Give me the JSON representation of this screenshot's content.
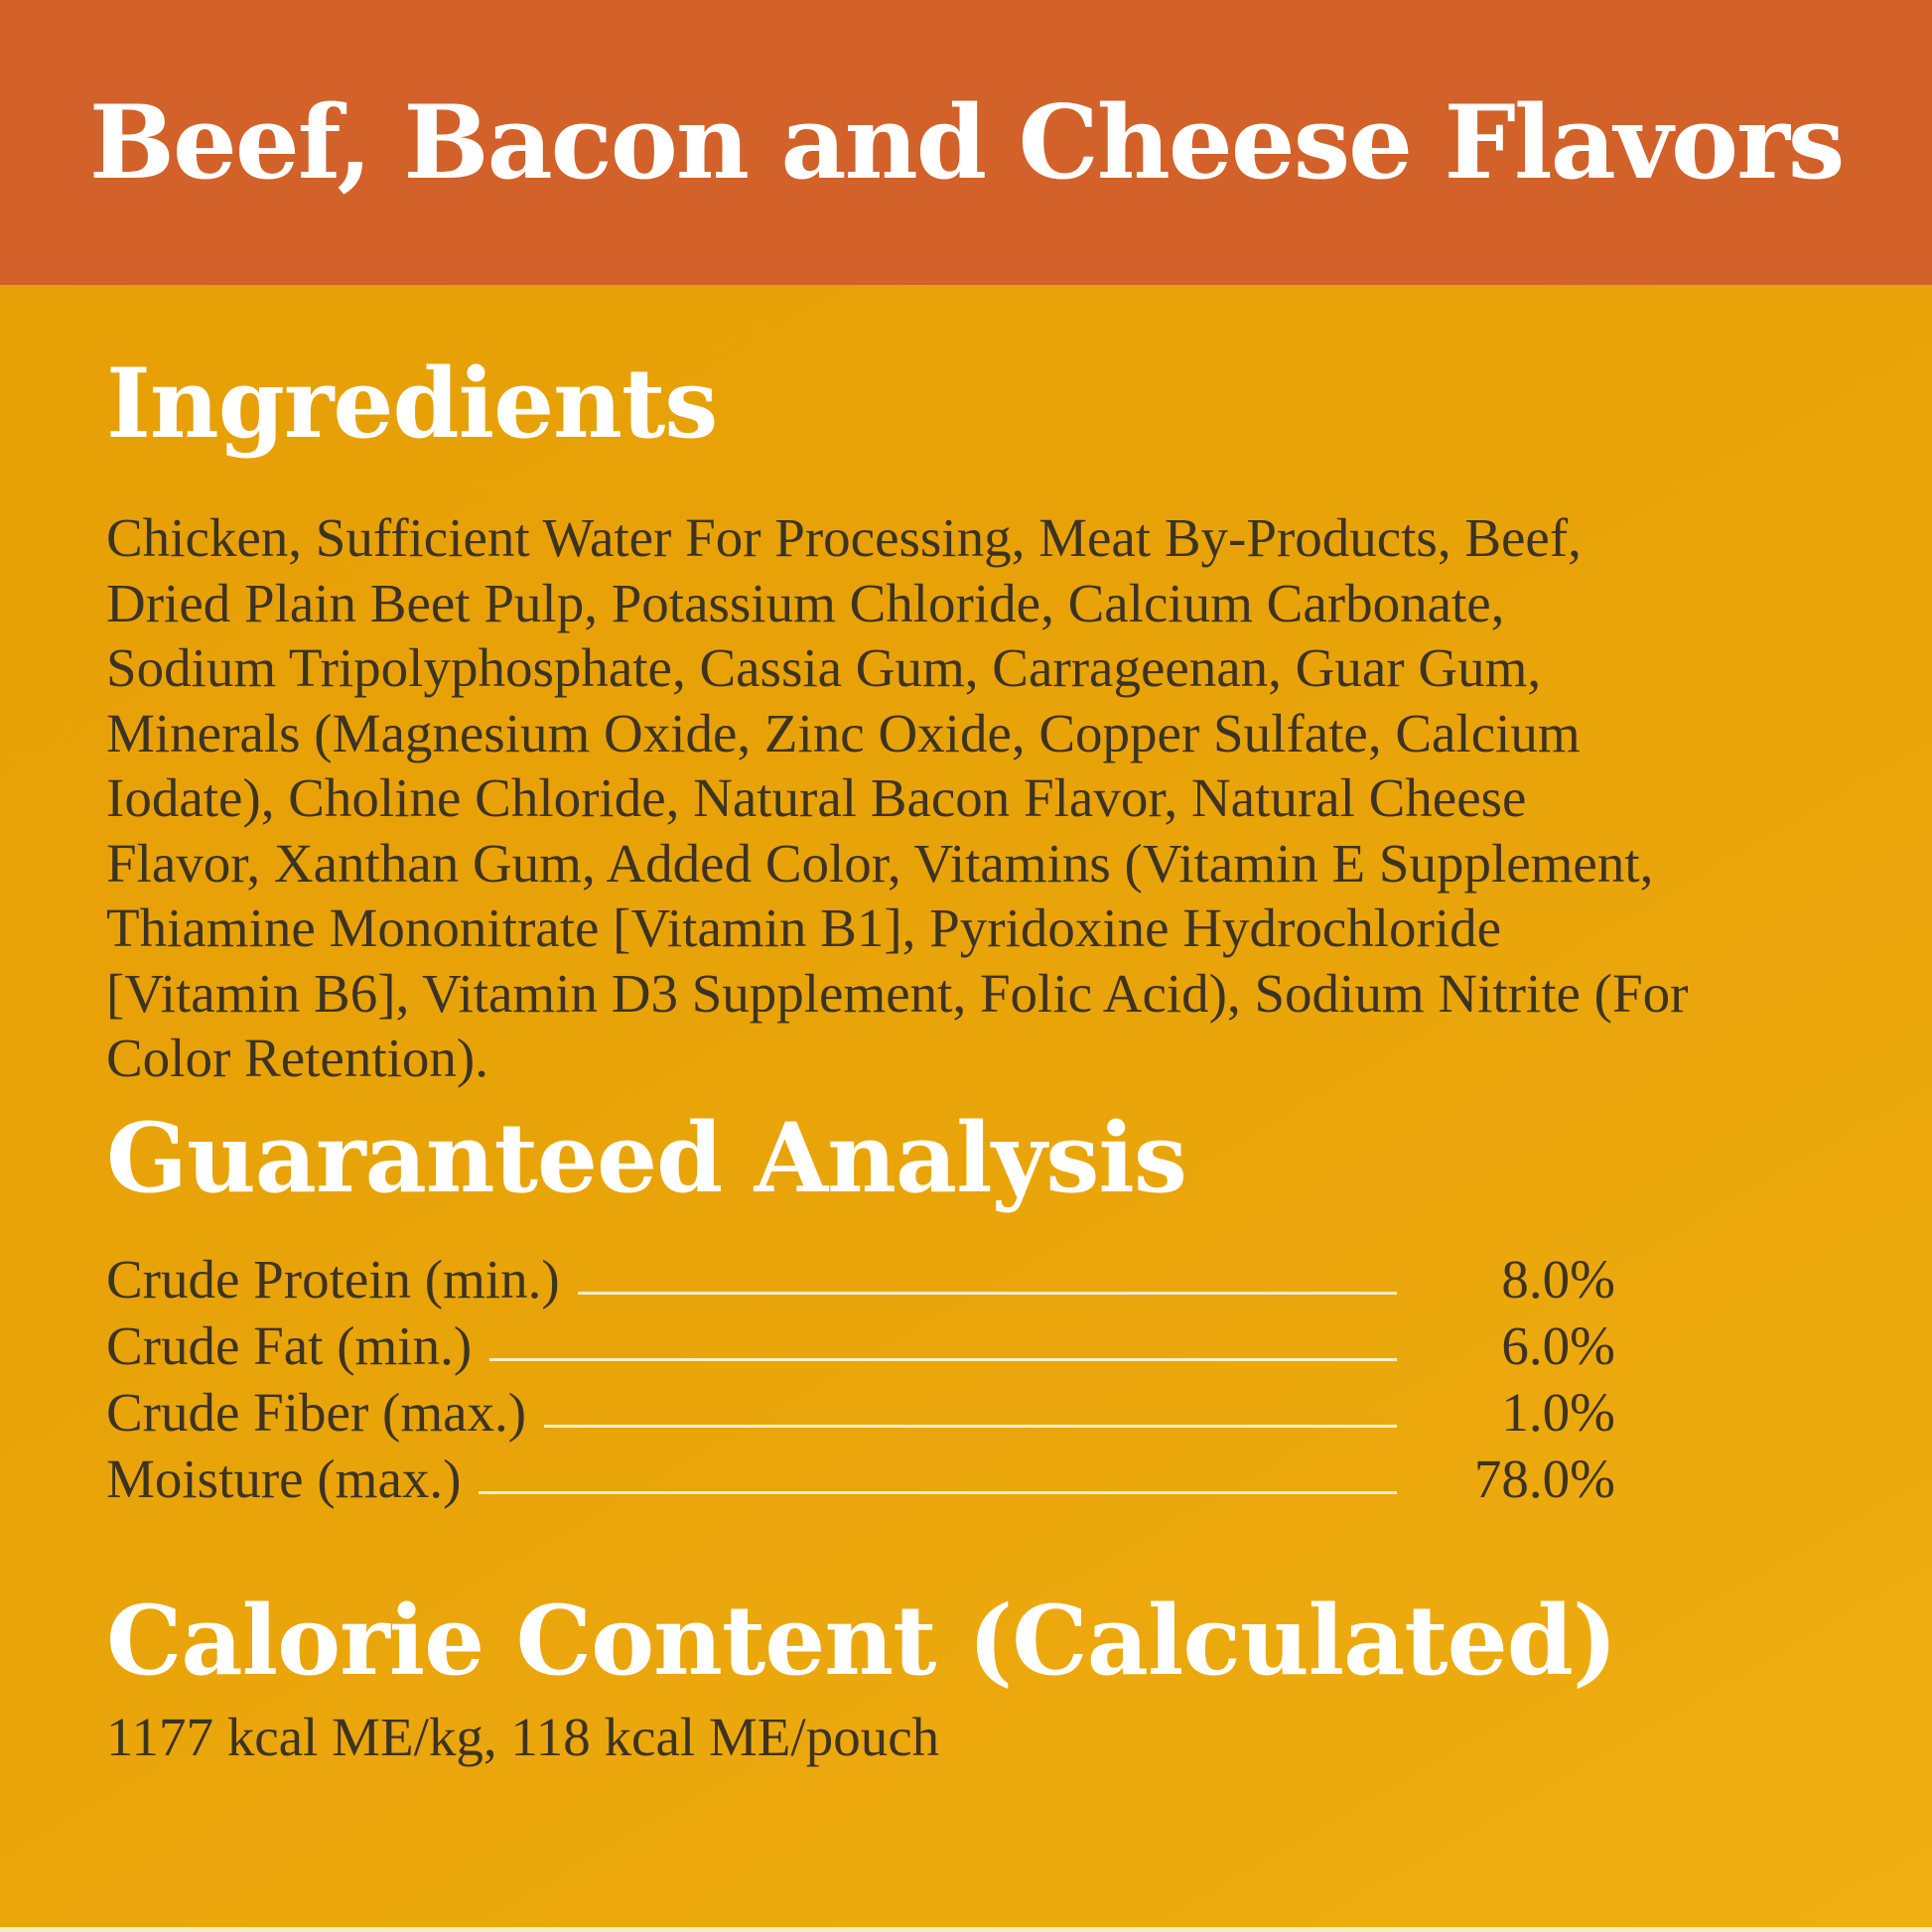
{
  "banner": {
    "title": "Beef, Bacon and Cheese Flavors"
  },
  "ingredients": {
    "heading": "Ingredients",
    "text": "Chicken, Sufficient Water For Processing, Meat By-Products, Beef,\nDried Plain Beet Pulp, Potassium Chloride, Calcium Carbonate,\nSodium Tripolyphosphate, Cassia Gum, Carrageenan, Guar Gum,\nMinerals (Magnesium Oxide, Zinc Oxide, Copper Sulfate, Calcium\nIodate), Choline Chloride, Natural Bacon Flavor, Natural Cheese\nFlavor, Xanthan Gum, Added Color, Vitamins (Vitamin E Supplement,\nThiamine Mononitrate [Vitamin B1], Pyridoxine Hydrochloride\n[Vitamin B6], Vitamin D3 Supplement, Folic Acid), Sodium Nitrite (For\nColor Retention)."
  },
  "analysis": {
    "heading": "Guaranteed Analysis",
    "rows": [
      {
        "label": "Crude Protein (min.)",
        "value": "8.0%"
      },
      {
        "label": "Crude Fat (min.)",
        "value": "6.0%"
      },
      {
        "label": "Crude Fiber (max.)",
        "value": "1.0%"
      },
      {
        "label": "Moisture (max.)",
        "value": "78.0%"
      }
    ]
  },
  "calories": {
    "heading": "Calorie Content (Calculated)",
    "text": "1177 kcal ME/kg, 118 kcal ME/pouch"
  },
  "colors": {
    "banner_orange": "#d2612a",
    "background_yellow": "#e8a20b",
    "heading_white": "#ffffff",
    "body_text": "#3c3322",
    "rule_line": "#f8f0c8"
  }
}
